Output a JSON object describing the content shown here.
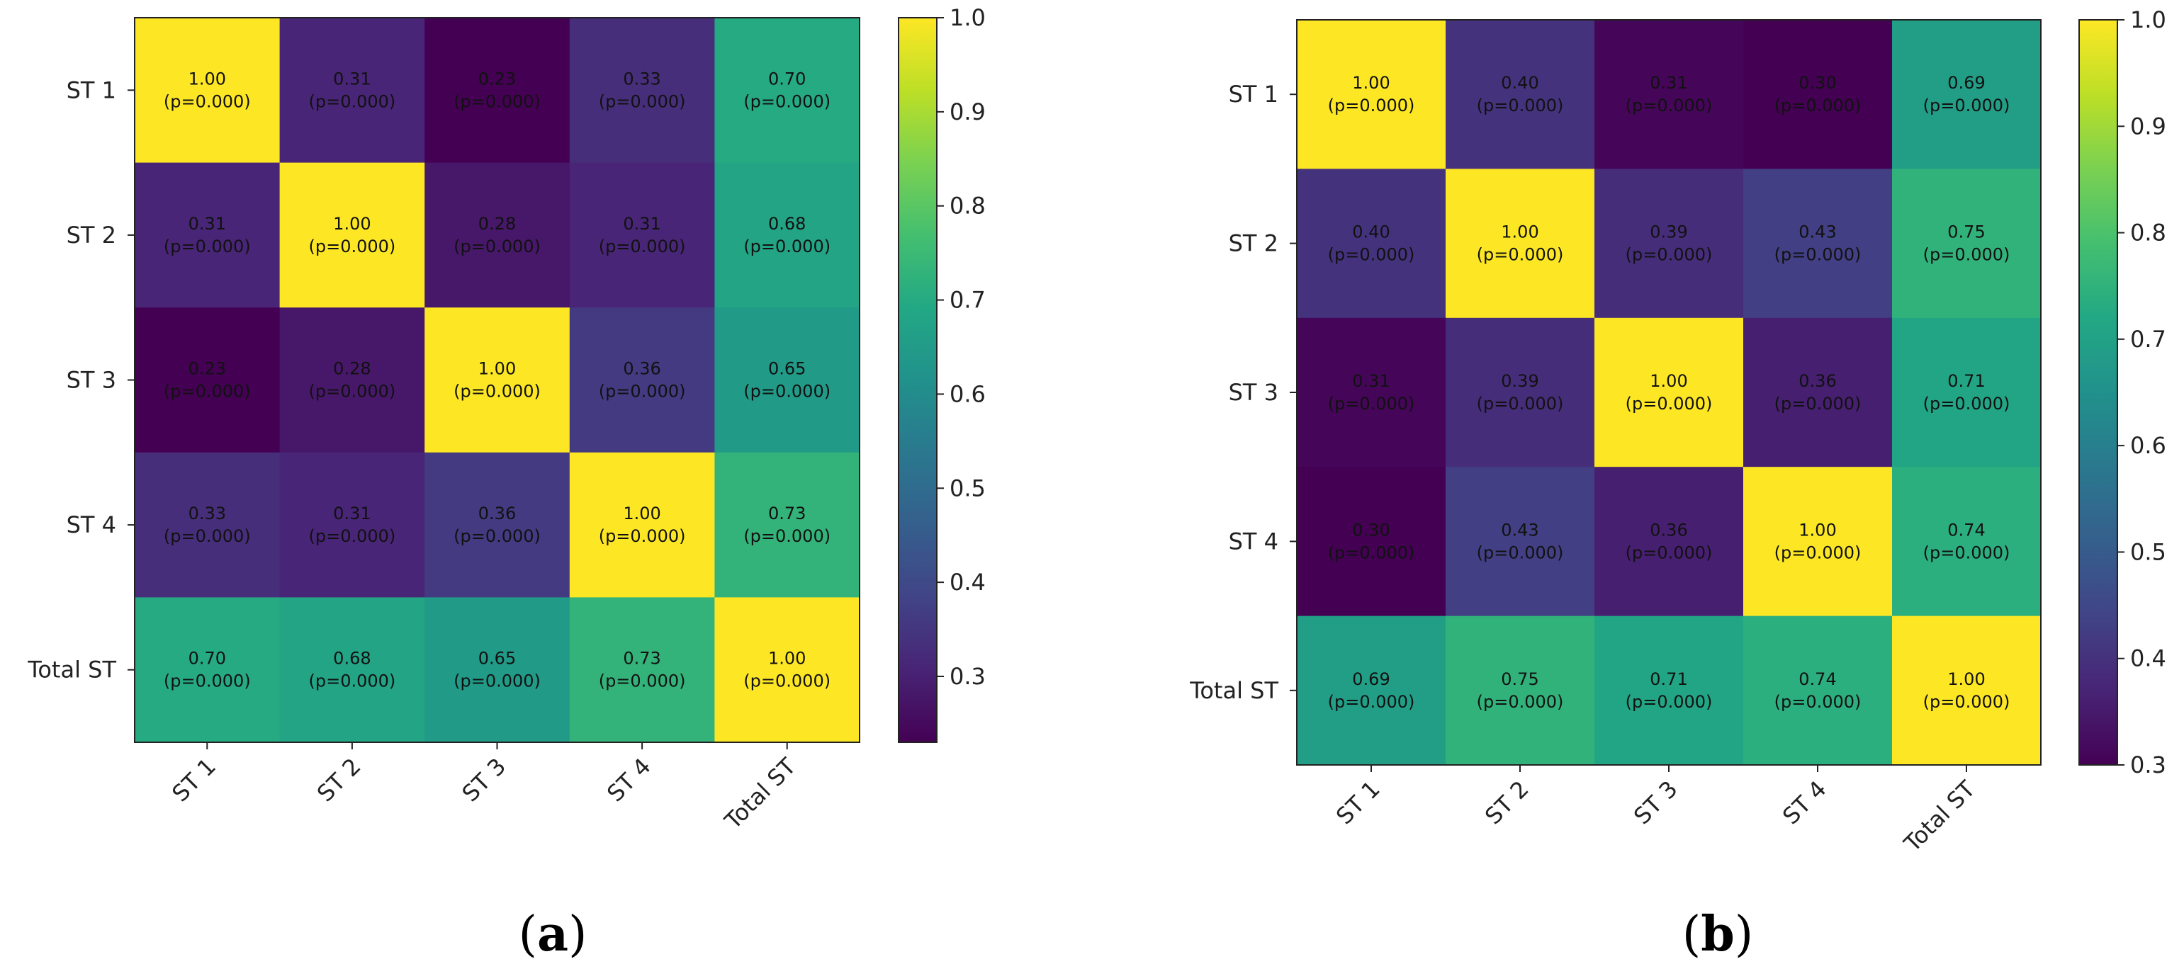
{
  "chart_data": [
    {
      "type": "heatmap",
      "caption_open": "(",
      "caption_letter": "a",
      "caption_close": ")",
      "rows": [
        "ST 1",
        "ST 2",
        "ST 3",
        "ST 4",
        "Total ST"
      ],
      "cols": [
        "ST 1",
        "ST 2",
        "ST 3",
        "ST 4",
        "Total ST"
      ],
      "values": [
        [
          1.0,
          0.31,
          0.23,
          0.33,
          0.7
        ],
        [
          0.31,
          1.0,
          0.28,
          0.31,
          0.68
        ],
        [
          0.23,
          0.28,
          1.0,
          0.36,
          0.65
        ],
        [
          0.33,
          0.31,
          0.36,
          1.0,
          0.73
        ],
        [
          0.7,
          0.68,
          0.65,
          0.73,
          1.0
        ]
      ],
      "cell_labels": [
        [
          "1.00",
          "0.31",
          "0.23",
          "0.33",
          "0.70"
        ],
        [
          "0.31",
          "1.00",
          "0.28",
          "0.31",
          "0.68"
        ],
        [
          "0.23",
          "0.28",
          "1.00",
          "0.36",
          "0.65"
        ],
        [
          "0.33",
          "0.31",
          "0.36",
          "1.00",
          "0.73"
        ],
        [
          "0.70",
          "0.68",
          "0.65",
          "0.73",
          "1.00"
        ]
      ],
      "p_label": "(p=0.000)",
      "colorbar": {
        "vmin": 0.23,
        "vmax": 1.0,
        "ticks": [
          1.0,
          0.9,
          0.8,
          0.7,
          0.6,
          0.5,
          0.4,
          0.3
        ],
        "tick_labels": [
          "1.0",
          "0.9",
          "0.8",
          "0.7",
          "0.6",
          "0.5",
          "0.4",
          "0.3"
        ],
        "colormap": "viridis"
      }
    },
    {
      "type": "heatmap",
      "caption_open": "(",
      "caption_letter": "b",
      "caption_close": ")",
      "rows": [
        "ST 1",
        "ST 2",
        "ST 3",
        "ST 4",
        "Total ST"
      ],
      "cols": [
        "ST 1",
        "ST 2",
        "ST 3",
        "ST 4",
        "Total ST"
      ],
      "values": [
        [
          1.0,
          0.4,
          0.31,
          0.3,
          0.69
        ],
        [
          0.4,
          1.0,
          0.39,
          0.43,
          0.75
        ],
        [
          0.31,
          0.39,
          1.0,
          0.36,
          0.71
        ],
        [
          0.3,
          0.43,
          0.36,
          1.0,
          0.74
        ],
        [
          0.69,
          0.75,
          0.71,
          0.74,
          1.0
        ]
      ],
      "cell_labels": [
        [
          "1.00",
          "0.40",
          "0.31",
          "0.30",
          "0.69"
        ],
        [
          "0.40",
          "1.00",
          "0.39",
          "0.43",
          "0.75"
        ],
        [
          "0.31",
          "0.39",
          "1.00",
          "0.36",
          "0.71"
        ],
        [
          "0.30",
          "0.43",
          "0.36",
          "1.00",
          "0.74"
        ],
        [
          "0.69",
          "0.75",
          "0.71",
          "0.74",
          "1.00"
        ]
      ],
      "p_label": "(p=0.000)",
      "colorbar": {
        "vmin": 0.3,
        "vmax": 1.0,
        "ticks": [
          1.0,
          0.9,
          0.8,
          0.7,
          0.6,
          0.5,
          0.4,
          0.3
        ],
        "tick_labels": [
          "1.0",
          "0.9",
          "0.8",
          "0.7",
          "0.6",
          "0.5",
          "0.4",
          "0.3"
        ],
        "colormap": "viridis"
      }
    }
  ]
}
